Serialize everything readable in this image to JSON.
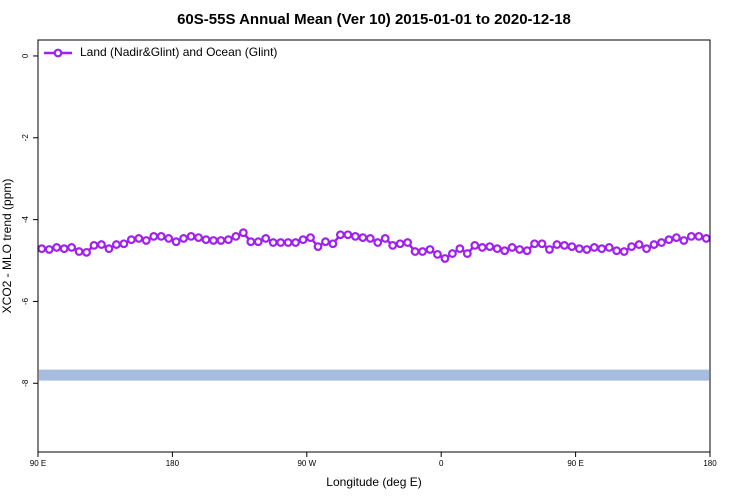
{
  "chart_data": {
    "type": "line",
    "title": "60S-55S Annual Mean (Ver 10)   2015-01-01 to 2020-12-18",
    "x_label": "Longitude (deg E)",
    "y_label": "XCO2 - MLO trend (ppm)",
    "xlim": [
      90,
      540
    ],
    "ylim": [
      -9.68,
      0.39
    ],
    "xticks": [
      {
        "value": 90,
        "label": "90 E"
      },
      180,
      {
        "value": 270,
        "label": "90 W"
      },
      {
        "value": 360,
        "label": "0"
      },
      {
        "value": 450,
        "label": "90 E"
      },
      {
        "value": 540,
        "label": "180"
      }
    ],
    "yticks": [
      0,
      -2,
      -4,
      -6,
      -8
    ],
    "legend": "top-left",
    "band": {
      "value": -7.8,
      "color": "#a7bddf"
    },
    "x": [
      92.5,
      97.5,
      102.5,
      107.5,
      112.5,
      117.5,
      122.5,
      127.5,
      132.5,
      137.5,
      142.5,
      147.5,
      152.5,
      157.5,
      162.5,
      167.5,
      172.5,
      177.5,
      182.5,
      187.5,
      192.5,
      197.5,
      202.5,
      207.5,
      212.5,
      217.5,
      222.5,
      227.5,
      232.5,
      237.5,
      242.5,
      247.5,
      252.5,
      257.5,
      262.5,
      267.5,
      272.5,
      277.5,
      282.5,
      287.5,
      292.5,
      297.5,
      302.5,
      307.5,
      312.5,
      317.5,
      322.5,
      327.5,
      332.5,
      337.5,
      342.5,
      347.5,
      352.5,
      357.5,
      362.5,
      367.5,
      372.5,
      377.5,
      382.5,
      387.5,
      392.5,
      397.5,
      402.5,
      407.5,
      412.5,
      417.5,
      422.5,
      427.5,
      432.5,
      437.5,
      442.5,
      447.5,
      452.5,
      457.5,
      462.5,
      467.5,
      472.5,
      477.5,
      482.5,
      487.5,
      492.5,
      497.5,
      502.5,
      507.5,
      512.5,
      517.5,
      522.5,
      527.5,
      532.5,
      537.5
    ],
    "series": [
      {
        "name": "Land (Nadir&Glint) and Ocean (Glint)",
        "color": "#a020f0",
        "values": [
          -4.71,
          -4.73,
          -4.68,
          -4.71,
          -4.68,
          -4.78,
          -4.8,
          -4.63,
          -4.61,
          -4.71,
          -4.61,
          -4.59,
          -4.49,
          -4.46,
          -4.51,
          -4.41,
          -4.41,
          -4.46,
          -4.54,
          -4.46,
          -4.41,
          -4.44,
          -4.49,
          -4.51,
          -4.51,
          -4.49,
          -4.41,
          -4.32,
          -4.54,
          -4.54,
          -4.46,
          -4.56,
          -4.56,
          -4.56,
          -4.56,
          -4.49,
          -4.44,
          -4.66,
          -4.54,
          -4.59,
          -4.37,
          -4.37,
          -4.41,
          -4.44,
          -4.46,
          -4.56,
          -4.46,
          -4.63,
          -4.59,
          -4.56,
          -4.78,
          -4.78,
          -4.73,
          -4.85,
          -4.95,
          -4.83,
          -4.71,
          -4.83,
          -4.63,
          -4.68,
          -4.66,
          -4.71,
          -4.76,
          -4.68,
          -4.73,
          -4.76,
          -4.59,
          -4.59,
          -4.73,
          -4.61,
          -4.63,
          -4.66,
          -4.71,
          -4.73,
          -4.68,
          -4.71,
          -4.68,
          -4.76,
          -4.78,
          -4.66,
          -4.61,
          -4.71,
          -4.61,
          -4.56,
          -4.49,
          -4.44,
          -4.51,
          -4.41,
          -4.41,
          -4.46
        ]
      }
    ]
  }
}
